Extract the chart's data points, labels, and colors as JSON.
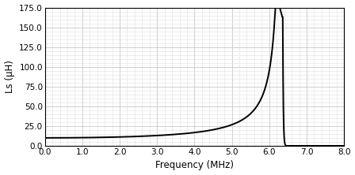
{
  "title": "",
  "xlabel": "Frequency (MHz)",
  "ylabel": "Ls (µH)",
  "xlim": [
    0.0,
    8.0
  ],
  "ylim": [
    0.0,
    175.0
  ],
  "xticks": [
    0.0,
    1.0,
    2.0,
    3.0,
    4.0,
    5.0,
    6.0,
    7.0,
    8.0
  ],
  "yticks": [
    0.0,
    25.0,
    50.0,
    75.0,
    100.0,
    125.0,
    150.0,
    175.0
  ],
  "line_color": "#000000",
  "line_width": 1.4,
  "background_color": "#ffffff",
  "grid_color": "#c8c8c8",
  "minor_grid_color": "#e0e0e0",
  "L0": 10.2,
  "resonance_freq": 6.35,
  "peak_val": 163.0,
  "xlabel_fontsize": 8.5,
  "ylabel_fontsize": 8.5,
  "tick_fontsize": 7.5
}
